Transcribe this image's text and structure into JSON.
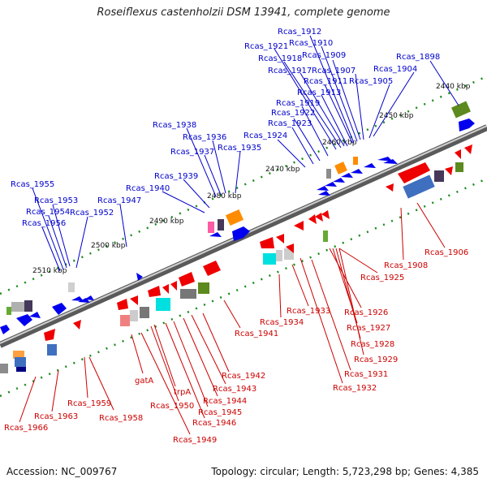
{
  "title": "Roseiflexus castenholzii DSM 13941, complete genome",
  "footer": {
    "accession": "Accession: NC_009767",
    "summary": "Topology: circular; Length: 5,723,298 bp; Genes: 4,385"
  },
  "kbp_ticks": [
    "2440 kbp",
    "2450 kbp",
    "2460 kbp",
    "2470 kbp",
    "2480 kbp",
    "2490 kbp",
    "2500 kbp",
    "2510 kbp"
  ],
  "forward_gene_labels": [
    "Rcas_1898",
    "Rcas_1904",
    "Rcas_1905",
    "Rcas_1907",
    "Rcas_1909",
    "Rcas_1910",
    "Rcas_1911",
    "Rcas_1912",
    "Rcas_1913",
    "Rcas_1917",
    "Rcas_1918",
    "Rcas_1919",
    "Rcas_1921",
    "Rcas_1922",
    "Rcas_1923",
    "Rcas_1924",
    "Rcas_1935",
    "Rcas_1936",
    "Rcas_1937",
    "Rcas_1938",
    "Rcas_1939",
    "Rcas_1940",
    "Rcas_1947",
    "Rcas_1952",
    "Rcas_1953",
    "Rcas_1954",
    "Rcas_1955",
    "Rcas_1956"
  ],
  "reverse_gene_labels": [
    "Rcas_1906",
    "Rcas_1908",
    "Rcas_1925",
    "Rcas_1926",
    "Rcas_1927",
    "Rcas_1928",
    "Rcas_1929",
    "Rcas_1931",
    "Rcas_1932",
    "Rcas_1933",
    "Rcas_1934",
    "Rcas_1941",
    "Rcas_1942",
    "Rcas_1943",
    "Rcas_1944",
    "Rcas_1945",
    "Rcas_1946",
    "Rcas_1949",
    "Rcas_1950",
    "trpA",
    "gatA",
    "Rcas_1958",
    "Rcas_1959",
    "Rcas_1963",
    "Rcas_1966"
  ],
  "colors": {
    "forward_label": "#0000cc",
    "reverse_label": "#cc0000",
    "forward_gene": "#0000ff",
    "reverse_gene": "#ff0000",
    "backbone": "#888888"
  }
}
